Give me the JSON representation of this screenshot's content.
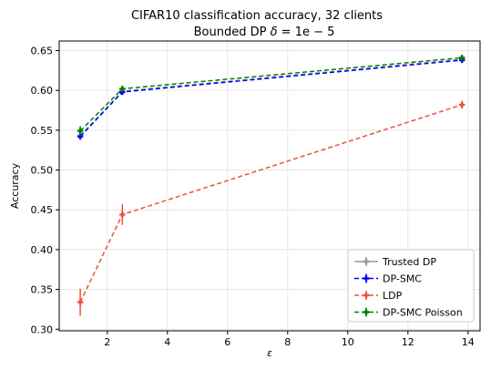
{
  "chart_data": {
    "type": "line",
    "title": "CIFAR10 classification accuracy, 32 clients",
    "subtitle_prefix": "Bounded DP ",
    "subtitle_symbol": "δ",
    "subtitle_suffix": " = 1e − 5",
    "xlabel": "ε",
    "ylabel": "Accuracy",
    "xlim": [
      0.4,
      14.4
    ],
    "ylim": [
      0.298,
      0.662
    ],
    "xticks": [
      2,
      4,
      6,
      8,
      10,
      12,
      14
    ],
    "yticks": [
      0.3,
      0.35,
      0.4,
      0.45,
      0.5,
      0.55,
      0.6,
      0.65
    ],
    "grid": true,
    "legend_position": "lower-right",
    "series": [
      {
        "name": "Trusted DP",
        "color": "#999999",
        "x": [
          1.1,
          2.5,
          13.8
        ],
        "y": [
          0.543,
          0.599,
          0.639
        ],
        "yerr": [
          0.004,
          0.003,
          0.003
        ]
      },
      {
        "name": "DP-SMC",
        "color": "#0000ff",
        "x": [
          1.1,
          2.5,
          13.8
        ],
        "y": [
          0.542,
          0.598,
          0.638
        ],
        "yerr": [
          0.004,
          0.003,
          0.003
        ]
      },
      {
        "name": "LDP",
        "color": "#e8533f",
        "x": [
          1.1,
          2.5,
          13.8
        ],
        "y": [
          0.334,
          0.444,
          0.582
        ],
        "yerr": [
          0.017,
          0.013,
          0.005
        ]
      },
      {
        "name": "DP-SMC Poisson",
        "color": "#008000",
        "x": [
          1.1,
          2.5,
          13.8
        ],
        "y": [
          0.549,
          0.602,
          0.641
        ],
        "yerr": [
          0.006,
          0.004,
          0.003
        ]
      }
    ]
  }
}
